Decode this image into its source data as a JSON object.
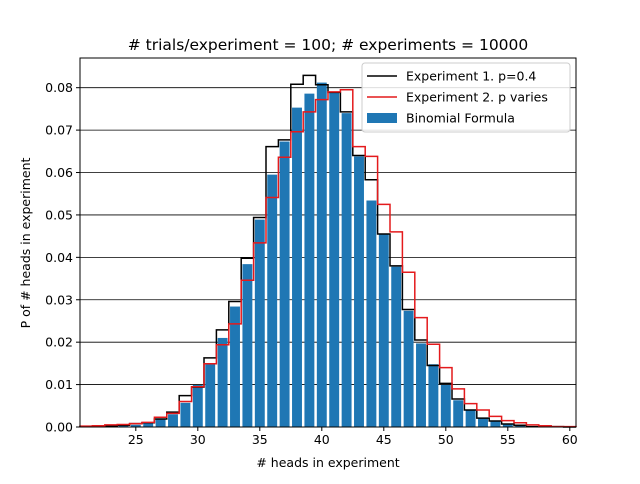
{
  "chart_data": {
    "type": "bar",
    "title": "# trials/experiment = 100; # experiments = 10000",
    "xlabel": "# heads in experiment",
    "ylabel": "P of # heads in experiment",
    "xlim": [
      20.5,
      60.5
    ],
    "ylim": [
      0,
      0.087
    ],
    "xticks": [
      25,
      30,
      35,
      40,
      45,
      50,
      55,
      60
    ],
    "xtick_labels": [
      "25",
      "30",
      "35",
      "40",
      "45",
      "50",
      "55",
      "60"
    ],
    "yticks": [
      0.0,
      0.01,
      0.02,
      0.03,
      0.04,
      0.05,
      0.06,
      0.07,
      0.08
    ],
    "ytick_labels": [
      "0.00",
      "0.01",
      "0.02",
      "0.03",
      "0.04",
      "0.05",
      "0.06",
      "0.07",
      "0.08"
    ],
    "grid": "horizontal",
    "legend_position": "upper right",
    "legend": [
      "Experiment 1. p=0.4",
      "Experiment 2. p varies",
      "Binomial Formula"
    ],
    "colors": {
      "exp1": "#000000",
      "exp2": "#e41a1c",
      "binomial": "#1f77b4",
      "grid": "#000000"
    },
    "binomial": {
      "name": "Binomial Formula",
      "x": [
        22,
        23,
        24,
        25,
        26,
        27,
        28,
        29,
        30,
        31,
        32,
        33,
        34,
        35,
        36,
        37,
        38,
        39,
        40,
        41,
        42,
        43,
        44,
        45,
        46,
        47,
        48,
        49,
        50,
        51,
        52,
        53,
        54,
        55,
        56,
        57,
        58
      ],
      "values": [
        0.0001,
        0.0002,
        0.0003,
        0.0005,
        0.001,
        0.0018,
        0.003,
        0.0057,
        0.0099,
        0.0149,
        0.021,
        0.0284,
        0.0384,
        0.0489,
        0.0595,
        0.0673,
        0.0753,
        0.0786,
        0.0812,
        0.0788,
        0.074,
        0.0638,
        0.0534,
        0.0454,
        0.0378,
        0.0274,
        0.0197,
        0.0148,
        0.0099,
        0.0063,
        0.004,
        0.0022,
        0.0014,
        0.0008,
        0.0004,
        0.0002,
        0.0001
      ]
    },
    "exp1": {
      "name": "Experiment 1. p=0.4",
      "x": [
        21,
        22,
        23,
        24,
        25,
        26,
        27,
        28,
        29,
        30,
        31,
        32,
        33,
        34,
        35,
        36,
        37,
        38,
        39,
        40,
        41,
        42,
        43,
        44,
        45,
        46,
        47,
        48,
        49,
        50,
        51,
        52,
        53,
        54,
        55,
        56,
        57,
        58,
        59,
        60
      ],
      "values": [
        0.0001,
        0.0002,
        0.0002,
        0.0004,
        0.0008,
        0.001,
        0.0019,
        0.0035,
        0.0074,
        0.0094,
        0.0163,
        0.0229,
        0.0296,
        0.0398,
        0.0494,
        0.0661,
        0.0677,
        0.0808,
        0.0829,
        0.0807,
        0.0789,
        0.0743,
        0.064,
        0.0583,
        0.0455,
        0.038,
        0.0277,
        0.0205,
        0.0145,
        0.0103,
        0.0066,
        0.004,
        0.0021,
        0.0014,
        0.0007,
        0.0004,
        0.0001,
        0.0001,
        0.0001,
        0.0
      ]
    },
    "exp2": {
      "name": "Experiment 2. p varies",
      "x": [
        21,
        22,
        23,
        24,
        25,
        26,
        27,
        28,
        29,
        30,
        31,
        32,
        33,
        34,
        35,
        36,
        37,
        38,
        39,
        40,
        41,
        42,
        43,
        44,
        45,
        46,
        47,
        48,
        49,
        50,
        51,
        52,
        53,
        54,
        55,
        56,
        57,
        58,
        59,
        60
      ],
      "values": [
        0.0002,
        0.0003,
        0.0005,
        0.0006,
        0.0008,
        0.0011,
        0.0023,
        0.0032,
        0.006,
        0.0095,
        0.0149,
        0.0194,
        0.0243,
        0.0346,
        0.0434,
        0.0541,
        0.0636,
        0.0696,
        0.0743,
        0.0772,
        0.079,
        0.0795,
        0.0661,
        0.0638,
        0.0525,
        0.046,
        0.0365,
        0.0258,
        0.0195,
        0.014,
        0.009,
        0.0055,
        0.004,
        0.0025,
        0.0015,
        0.001,
        0.0005,
        0.0003,
        0.0001,
        0.0001
      ]
    }
  }
}
